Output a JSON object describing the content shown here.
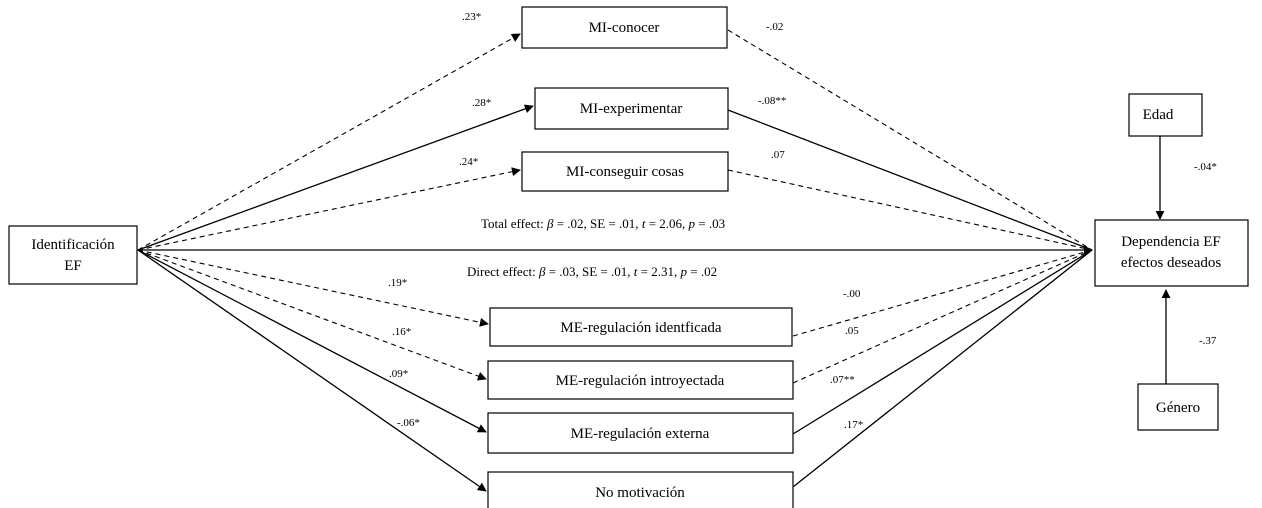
{
  "colors": {
    "line": "#000000",
    "background": "#ffffff"
  },
  "nodes": {
    "identificacion": {
      "line1": "Identificación",
      "line2": "EF"
    },
    "mi_conocer": "MI-conocer",
    "mi_experimentar": "MI-experimentar",
    "mi_conseguir": "MI-conseguir cosas",
    "me_identificada": "ME-regulación identficada",
    "me_introyectada": "ME-regulación introyectada",
    "me_externa": "ME-regulación externa",
    "no_motivacion": "No motivación",
    "dependencia": {
      "line1": "Dependencia EF",
      "line2": "efectos deseados"
    },
    "edad": "Edad",
    "genero": "Género"
  },
  "paths": {
    "a": [
      {
        "target": "MI-conocer",
        "coef": ".23*",
        "style": "dashed"
      },
      {
        "target": "MI-experimentar",
        "coef": ".28*",
        "style": "solid"
      },
      {
        "target": "MI-conseguir cosas",
        "coef": ".24*",
        "style": "dashed"
      },
      {
        "target": "ME-regulación identficada",
        "coef": ".19*",
        "style": "dashed"
      },
      {
        "target": "ME-regulación introyectada",
        "coef": ".16*",
        "style": "dashed"
      },
      {
        "target": "ME-regulación externa",
        "coef": ".09*",
        "style": "solid"
      },
      {
        "target": "No motivación",
        "coef": "-.06*",
        "style": "solid"
      }
    ],
    "b": [
      {
        "source": "MI-conocer",
        "coef": "-.02",
        "style": "dashed"
      },
      {
        "source": "MI-experimentar",
        "coef": "-.08**",
        "style": "solid"
      },
      {
        "source": "MI-conseguir cosas",
        "coef": ".07",
        "style": "dashed"
      },
      {
        "source": "ME-regulación identficada",
        "coef": "-.00",
        "style": "dashed"
      },
      {
        "source": "ME-regulación introyectada",
        "coef": ".05",
        "style": "dashed"
      },
      {
        "source": "ME-regulación externa",
        "coef": ".07**",
        "style": "solid"
      },
      {
        "source": "No motivación",
        "coef": ".17*",
        "style": "solid"
      }
    ],
    "covariates": [
      {
        "source": "Edad",
        "coef": "-.04*"
      },
      {
        "source": "Género",
        "coef": "-.37"
      }
    ]
  },
  "effects": {
    "total": {
      "prefix": "Total effect: ",
      "beta_sym": "β",
      "rest1": " = .02, SE = .01, ",
      "t_sym": "t",
      "rest2": " = 2.06, ",
      "p_sym": "p",
      "rest3": " = .03"
    },
    "direct": {
      "prefix": "Direct effect: ",
      "beta_sym": "β",
      "rest1": " = .03, SE = .01, ",
      "t_sym": "t",
      "rest2": " = 2.31, ",
      "p_sym": "p",
      "rest3": " = .02"
    }
  }
}
